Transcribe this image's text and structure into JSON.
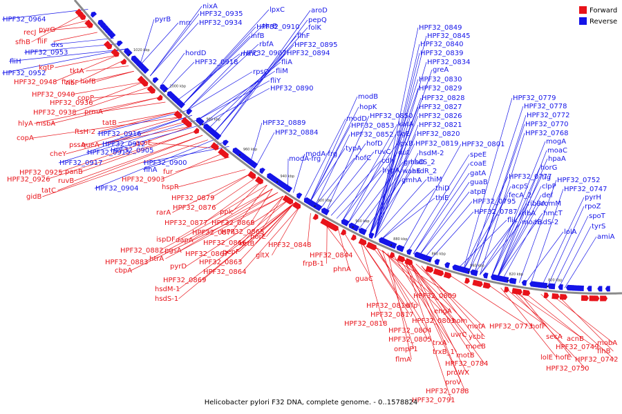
{
  "caption": "Helicobacter pylori F32 DNA, complete genome. - 0..1578824",
  "legend": [
    {
      "label": "Forward",
      "color": "#e8131a"
    },
    {
      "label": "Reverse",
      "color": "#1414e8"
    }
  ],
  "colors": {
    "forward": "#e8131a",
    "reverse": "#1414e8",
    "backbone": "#888888"
  },
  "ticks": [
    "1020 kbp",
    "1000 kbp",
    "980 kbp",
    "960 kbp",
    "940 kbp",
    "920 kbp",
    "900 kbp",
    "880 kbp",
    "860 kbp",
    "840 kbp",
    "820 kbp",
    "800 kbp"
  ],
  "forward_labels": [
    "sfhB",
    "recJ",
    "pyrG",
    "fliF",
    "HPF32_0948",
    "kgtP",
    "ftsK",
    "tktA",
    "ribF",
    "hofB",
    "HPF32_0940",
    "HPF32_0936",
    "HPF32_0938",
    "copP",
    "prmA",
    "hlyA",
    "msbA",
    "tatB",
    "ftsH-2",
    "pssA",
    "copA",
    "cheY",
    "queA",
    "HPF32_0925",
    "panB",
    "HPF32_0926",
    "ruvB",
    "tatC",
    "gidB",
    "HPF32_0903",
    "acoE",
    "fur",
    "hspR",
    "HPF32_0879",
    "HPF32_0876",
    "ppk",
    "rarA",
    "HPF32_0877",
    "HPF32_0874",
    "HPF32_0868",
    "ispDF",
    "dapA",
    "HPF32_0865",
    "horE",
    "HPF32_0882",
    "pgsA",
    "HPF32_0866",
    "ketB",
    "htrA",
    "HPF32_0867",
    "pepF",
    "gltX",
    "HPF32_0848",
    "HPF32_0883",
    "pyrD",
    "HPF32_0863",
    "cbpA",
    "HPF32_0864",
    "HPF32_0869",
    "hsdM-1",
    "hsdS-1",
    "HPF32_0844",
    "frpB-1",
    "phnA",
    "guaC",
    "HPF32_0809",
    "HPF32_0816",
    "dfp",
    "engA",
    "HPF32_0817",
    "HPF32_0803",
    "HPF32_0818",
    "HPF32_0804",
    "HPF32_0805",
    "ompP1",
    "flmA",
    "hom",
    "uvrC",
    "motA",
    "ycbL",
    "moeB",
    "trxA",
    "trxB_1",
    "motB",
    "HPF32_0784",
    "proWX",
    "proV",
    "HPF32_0788",
    "HPF32_0791",
    "HPF32_0773",
    "hofF",
    "secA",
    "acnB",
    "HPF32_0749",
    "lolE",
    "hofE",
    "HPF32_0750",
    "mobA",
    "flhB",
    "HPF32_0742"
  ],
  "reverse_labels": [
    "HPF32_0964",
    "pyrB",
    "mrr",
    "nixA",
    "HPF32_0935",
    "HPF32_0934",
    "lpxC",
    "aroD",
    "pepQ",
    "folK",
    "flhF",
    "HPF32_0895",
    "HPF32_0894",
    "thrB",
    "HPF32_0910",
    "rbfA",
    "infB",
    "minC",
    "HPF32_0907",
    "hordD",
    "HPF32_0918",
    "fliA",
    "fliM",
    "fliY",
    "HPF32_0890",
    "rpsO",
    "dxs",
    "fliH",
    "HPF32_0953",
    "HPF32_0952",
    "HPF32_0916",
    "HPF32_0912",
    "HPF32_0915",
    "HPF32_0917",
    "HPF32_0905",
    "flhA",
    "HPF32_0900",
    "HPF32_0904",
    "HPF32_0889",
    "HPF32_0884",
    "modA-frg",
    "modA-frg",
    "typA",
    "hofC",
    "hofD",
    "ruvC",
    "cdh",
    "hypA",
    "lpxB",
    "dut",
    "gmhD",
    "waaE",
    "gmhA",
    "katA",
    "flgE",
    "HPF32_0853",
    "HPF32_0852",
    "HPF32_0850",
    "modD",
    "hopK",
    "modB",
    "HPF32_0849",
    "HPF32_0845",
    "HPF32_0840",
    "HPF32_0839",
    "HPF32_0834",
    "greA",
    "HPF32_0830",
    "HPF32_0829",
    "HPF32_0828",
    "HPF32_0827",
    "HPF32_0826",
    "HPF32_0821",
    "HPF32_0820",
    "HPF32_0819",
    "hsdM-2",
    "hsdS_2",
    "hsdR_2",
    "thiM",
    "thiD",
    "thiE",
    "HPF32_0801",
    "speE",
    "coaE",
    "gatA",
    "guaB",
    "atpB",
    "HPF32_0795",
    "HPF32_0787",
    "fliL",
    "HPF32_0779",
    "HPF32_0778",
    "HPF32_0772",
    "HPF32_0770",
    "HPF32_0768",
    "mogA",
    "moaC",
    "hpaA",
    "horG",
    "tig",
    "clpP",
    "def",
    "comM",
    "hmcT",
    "hsdS-2",
    "HPF32_0777",
    "acpS",
    "fecA_2",
    "ribBA",
    "ribA",
    "moaE",
    "lolA",
    "HPF32_0752",
    "HPF32_0747",
    "pyrH",
    "rpoZ",
    "spoT",
    "tyrS",
    "amiA"
  ]
}
